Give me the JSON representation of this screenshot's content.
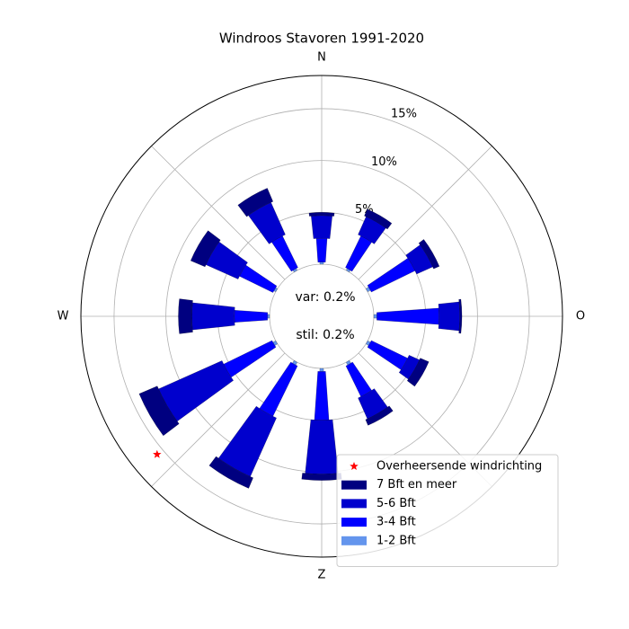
{
  "chart_data": {
    "type": "windrose",
    "title": "Windroos Stavoren 1991-2020",
    "categories": [
      "N",
      null,
      null,
      "O",
      null,
      null,
      "Z",
      null,
      null,
      "W",
      null,
      null
    ],
    "angles": [
      0,
      30,
      60,
      90,
      120,
      150,
      180,
      210,
      240,
      270,
      300,
      330
    ],
    "series": [
      {
        "name": "1-2 Bft",
        "color": "#6495ed",
        "values": [
          0.2,
          0.2,
          0.3,
          0.3,
          0.3,
          0.3,
          0.3,
          0.3,
          0.3,
          0.2,
          0.2,
          0.2
        ]
      },
      {
        "name": "3-4 Bft",
        "color": "#0000ff",
        "values": [
          2.3,
          3.4,
          4.7,
          6.0,
          3.9,
          3.3,
          4.7,
          5.4,
          5.2,
          3.2,
          3.6,
          3.4
        ]
      },
      {
        "name": "5-6 Bft",
        "color": "#0000cd",
        "values": [
          2.2,
          1.9,
          1.7,
          2.0,
          1.1,
          2.2,
          5.2,
          6.2,
          6.7,
          4.1,
          3.4,
          3.4
        ]
      },
      {
        "name": "7 Bft en meer",
        "color": "#000080",
        "values": [
          0.3,
          0.7,
          0.6,
          0.2,
          0.9,
          0.6,
          0.6,
          1.1,
          1.9,
          1.3,
          1.5,
          1.4
        ]
      }
    ],
    "dominant": {
      "name": "Overheersende windrichting",
      "color": "#ff0000",
      "angle": 230,
      "r": 15.7
    },
    "annotations": [
      "var:  0.2%",
      "stil:  0.2%"
    ],
    "ylim": [
      0,
      18.2
    ],
    "yticks": [
      {
        "value": 5,
        "label": "5%"
      },
      {
        "value": 10,
        "label": "10%"
      },
      {
        "value": 15,
        "label": "15%"
      }
    ],
    "grid": true,
    "legend": "lower right"
  }
}
